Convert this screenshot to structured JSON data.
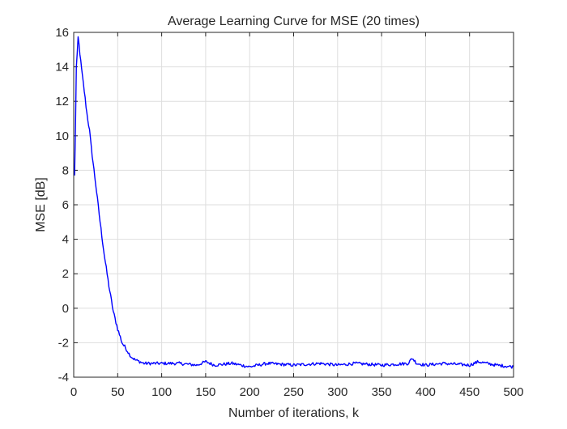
{
  "chart_data": {
    "type": "line",
    "title": "Average Learning Curve for MSE (20 times)",
    "xlabel": "Number of iterations, k",
    "ylabel": "MSE [dB]",
    "xlim": [
      0,
      500
    ],
    "ylim": [
      -4,
      16
    ],
    "xticks": [
      0,
      50,
      100,
      150,
      200,
      250,
      300,
      350,
      400,
      450,
      500
    ],
    "yticks": [
      -4,
      -2,
      0,
      2,
      4,
      6,
      8,
      10,
      12,
      14,
      16
    ],
    "xtick_labels": [
      "0",
      "50",
      "100",
      "150",
      "200",
      "250",
      "300",
      "350",
      "400",
      "450",
      "500"
    ],
    "ytick_labels": [
      "-4",
      "-2",
      "0",
      "2",
      "4",
      "6",
      "8",
      "10",
      "12",
      "14",
      "16"
    ],
    "grid": true,
    "legend": "none",
    "line_color": "#0000ff",
    "series": [
      {
        "x": [
          1,
          2,
          3,
          4,
          5,
          6,
          8,
          10,
          12,
          15,
          18,
          20,
          25,
          30,
          35,
          40,
          45,
          50,
          55,
          60,
          65,
          70,
          80,
          90,
          100,
          120,
          140,
          150,
          160,
          180,
          200,
          220,
          250,
          280,
          300,
          320,
          350,
          380,
          385,
          390,
          400,
          420,
          450,
          460,
          480,
          500
        ],
        "y": [
          7.7,
          10.5,
          14.0,
          14.8,
          15.7,
          15.3,
          14.3,
          13.4,
          12.6,
          11.3,
          10.3,
          9.3,
          7.2,
          5.0,
          3.0,
          1.3,
          -0.2,
          -1.2,
          -2.0,
          -2.4,
          -2.8,
          -3.0,
          -3.2,
          -3.2,
          -3.2,
          -3.2,
          -3.3,
          -3.1,
          -3.3,
          -3.2,
          -3.4,
          -3.2,
          -3.3,
          -3.2,
          -3.3,
          -3.2,
          -3.3,
          -3.2,
          -2.9,
          -3.2,
          -3.3,
          -3.2,
          -3.3,
          -3.1,
          -3.3,
          -3.4
        ]
      }
    ]
  }
}
